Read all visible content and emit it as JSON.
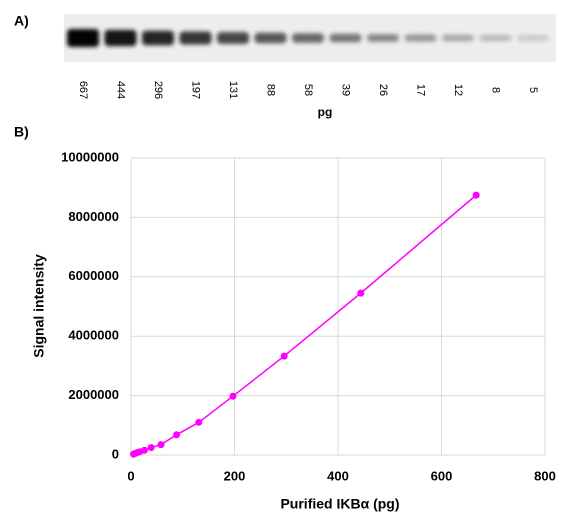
{
  "panel_a": {
    "label": "A)",
    "lanes": [
      667,
      444,
      296,
      197,
      131,
      88,
      58,
      39,
      26,
      17,
      12,
      8,
      5
    ],
    "unit": "pg"
  },
  "chart_data": {
    "type": "line",
    "panel_label": "B)",
    "x_label": "Purified IKBα (pg)",
    "y_label": "Signal intensity",
    "x": [
      5,
      8,
      12,
      17,
      26,
      39,
      58,
      88,
      131,
      197,
      296,
      444,
      667
    ],
    "series": [
      {
        "color": "#ff00ff",
        "values": [
          30000,
          50000,
          80000,
          110000,
          160000,
          250000,
          350000,
          680000,
          1100000,
          1980000,
          3330000,
          5450000,
          8750000
        ]
      }
    ],
    "xlim": [
      0,
      800
    ],
    "xticks": [
      0,
      200,
      400,
      600,
      800
    ],
    "ylim": [
      0,
      10000000
    ],
    "yticks": [
      0,
      2000000,
      4000000,
      6000000,
      8000000,
      10000000
    ],
    "grid": true
  }
}
